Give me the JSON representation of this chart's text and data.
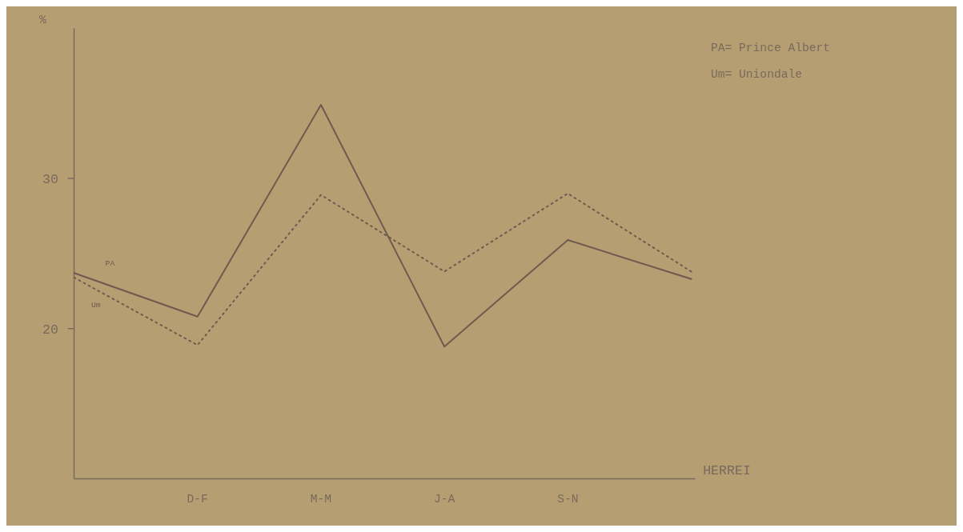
{
  "chart_data": {
    "type": "line",
    "ylabel": "%",
    "xlabel": "HERREI",
    "categories": [
      null,
      "D-F",
      "M-M",
      "J-A",
      "S-N",
      null
    ],
    "ylim": [
      10,
      40
    ],
    "yticks": [
      20,
      30
    ],
    "series": [
      {
        "name": "PA",
        "color": "#6e5a4e",
        "line_style": "solid",
        "values": [
          23.7,
          20.8,
          34.9,
          18.8,
          25.9,
          23.3
        ]
      },
      {
        "name": "Um",
        "color": "#6e5a4e",
        "line_style": "dotted",
        "values": [
          23.4,
          18.9,
          28.9,
          23.8,
          29.0,
          23.8
        ]
      }
    ],
    "annotations": [
      "PA= Prince Albert",
      "Um= Uniondale"
    ],
    "grid": false,
    "legend": false,
    "marker": "none"
  }
}
